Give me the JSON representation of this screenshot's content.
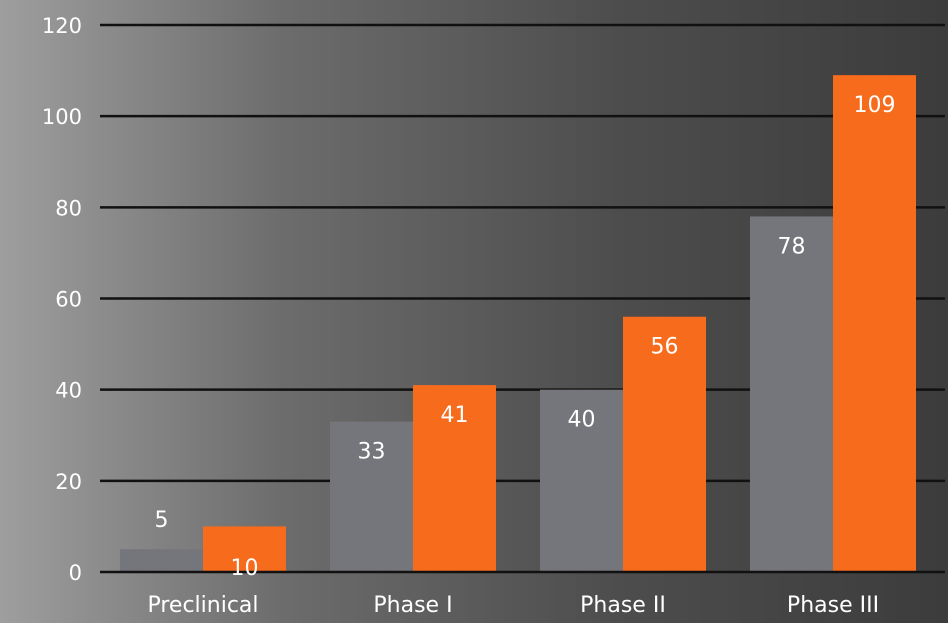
{
  "chart_data": {
    "type": "bar",
    "title": "",
    "xlabel": "",
    "ylabel": "",
    "categories": [
      "Preclinical",
      "Phase I",
      "Phase II",
      "Phase III"
    ],
    "series": [
      {
        "values": [
          5,
          33,
          40,
          78
        ],
        "color": "#75767b"
      },
      {
        "values": [
          10,
          41,
          56,
          109
        ],
        "color": "#f76b1c"
      }
    ],
    "ylim": [
      0,
      120
    ],
    "yticks": [
      0,
      20,
      40,
      60,
      80,
      100,
      120
    ],
    "grid": true,
    "legend": "none"
  }
}
